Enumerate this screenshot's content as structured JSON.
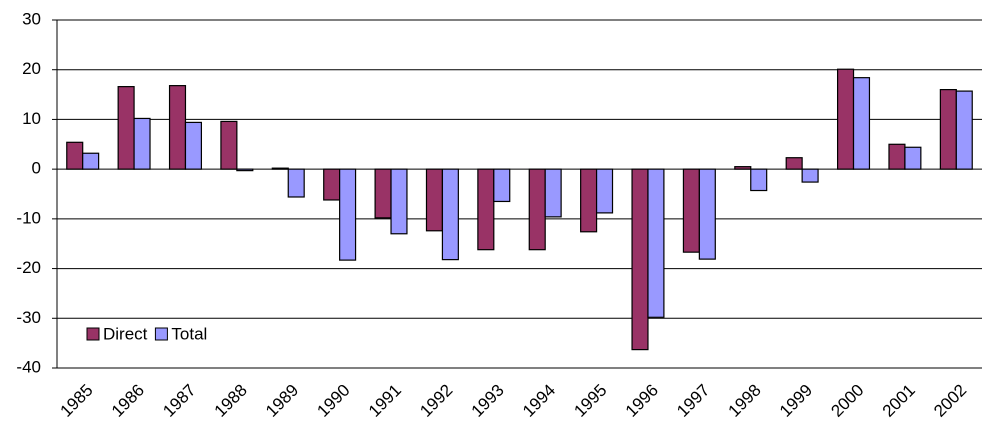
{
  "chart_data": {
    "type": "bar",
    "categories": [
      "1985",
      "1986",
      "1987",
      "1988",
      "1989",
      "1990",
      "1991",
      "1992",
      "1993",
      "1994",
      "1995",
      "1996",
      "1997",
      "1998",
      "1999",
      "2000",
      "2001",
      "2002"
    ],
    "series": [
      {
        "name": "Direct",
        "color": "#993366",
        "values": [
          5.4,
          16.6,
          16.8,
          9.6,
          0.2,
          -6.2,
          -9.8,
          -12.4,
          -16.2,
          -16.2,
          -12.6,
          -36.3,
          -16.7,
          0.5,
          2.3,
          20.1,
          5.0,
          16.0
        ]
      },
      {
        "name": "Total",
        "color": "#9999ff",
        "values": [
          3.2,
          10.2,
          9.4,
          -0.3,
          -5.6,
          -18.3,
          -13.0,
          -18.2,
          -6.5,
          -9.6,
          -8.8,
          -29.8,
          -18.1,
          -4.3,
          -2.6,
          18.4,
          4.4,
          15.7
        ]
      }
    ],
    "ylim": [
      -40,
      30
    ],
    "yticks": [
      -40,
      -30,
      -20,
      -10,
      0,
      10,
      20,
      30
    ],
    "grid": true,
    "legend": "lower left"
  }
}
